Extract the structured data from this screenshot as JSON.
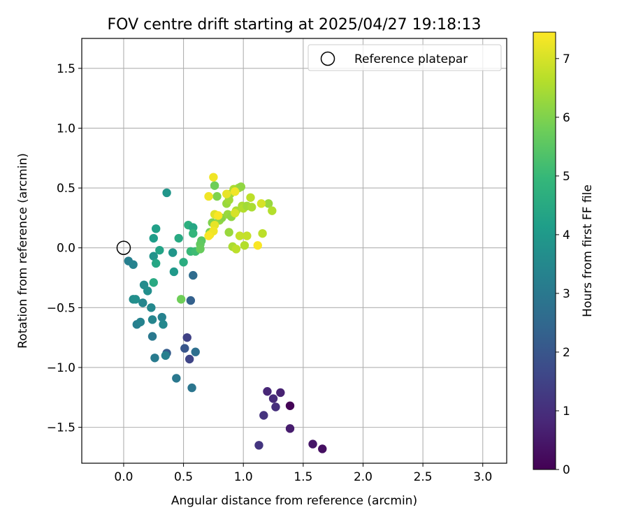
{
  "chart_data": {
    "type": "scatter",
    "title": "FOV centre drift starting at 2025/04/27 19:18:13",
    "xlabel": "Angular distance from reference (arcmin)",
    "ylabel": "Rotation from reference (arcmin)",
    "xlim": [
      -0.35,
      3.2
    ],
    "ylim": [
      -1.8,
      1.75
    ],
    "xticks": [
      0.0,
      0.5,
      1.0,
      1.5,
      2.0,
      2.5,
      3.0
    ],
    "xtick_labels": [
      "0.0",
      "0.5",
      "1.0",
      "1.5",
      "2.0",
      "2.5",
      "3.0"
    ],
    "yticks": [
      -1.5,
      -1.0,
      -0.5,
      0.0,
      0.5,
      1.0,
      1.5
    ],
    "ytick_labels": [
      "−1.5",
      "−1.0",
      "−0.5",
      "0.0",
      "0.5",
      "1.0",
      "1.5"
    ],
    "grid": true,
    "legend": {
      "placement": "top-right",
      "entries": [
        "Reference platepar"
      ]
    },
    "reference_point": {
      "x": 0.0,
      "y": 0.0
    },
    "colorbar": {
      "label": "Hours from first FF file",
      "range": [
        0,
        7.45
      ],
      "ticks": [
        0,
        1,
        2,
        3,
        4,
        5,
        6,
        7
      ],
      "tick_labels": [
        "0",
        "1",
        "2",
        "3",
        "4",
        "5",
        "6",
        "7"
      ],
      "colormap": [
        "#440154",
        "#482878",
        "#3e4989",
        "#31688e",
        "#26828e",
        "#1f9e89",
        "#35b779",
        "#6ece58",
        "#b5de2b",
        "#fde725"
      ]
    },
    "points": [
      {
        "x": 1.39,
        "y": -1.32,
        "c": 0.05
      },
      {
        "x": 1.66,
        "y": -1.68,
        "c": 0.3
      },
      {
        "x": 1.58,
        "y": -1.64,
        "c": 0.45
      },
      {
        "x": 1.39,
        "y": -1.51,
        "c": 0.6
      },
      {
        "x": 1.31,
        "y": -1.21,
        "c": 0.7
      },
      {
        "x": 1.2,
        "y": -1.2,
        "c": 0.8
      },
      {
        "x": 1.25,
        "y": -1.26,
        "c": 0.9
      },
      {
        "x": 1.27,
        "y": -1.33,
        "c": 1.0
      },
      {
        "x": 1.17,
        "y": -1.4,
        "c": 1.1
      },
      {
        "x": 1.13,
        "y": -1.65,
        "c": 1.15
      },
      {
        "x": 0.53,
        "y": -0.75,
        "c": 1.45
      },
      {
        "x": 0.55,
        "y": -0.93,
        "c": 1.55
      },
      {
        "x": 0.51,
        "y": -0.84,
        "c": 2.0
      },
      {
        "x": 0.36,
        "y": -0.88,
        "c": 2.2
      },
      {
        "x": 0.56,
        "y": -0.44,
        "c": 2.3
      },
      {
        "x": 0.58,
        "y": -0.23,
        "c": 2.6
      },
      {
        "x": 0.6,
        "y": -0.87,
        "c": 2.7
      },
      {
        "x": 0.57,
        "y": -1.17,
        "c": 2.9
      },
      {
        "x": 0.44,
        "y": -1.09,
        "c": 3.0
      },
      {
        "x": 0.26,
        "y": -0.92,
        "c": 3.1
      },
      {
        "x": 0.35,
        "y": -0.9,
        "c": 3.2
      },
      {
        "x": 0.24,
        "y": -0.74,
        "c": 3.0
      },
      {
        "x": 0.11,
        "y": -0.64,
        "c": 3.2
      },
      {
        "x": 0.14,
        "y": -0.62,
        "c": 3.3
      },
      {
        "x": 0.24,
        "y": -0.6,
        "c": 3.4
      },
      {
        "x": 0.32,
        "y": -0.58,
        "c": 3.3
      },
      {
        "x": 0.33,
        "y": -0.64,
        "c": 3.5
      },
      {
        "x": 0.16,
        "y": -0.46,
        "c": 3.4
      },
      {
        "x": 0.23,
        "y": -0.5,
        "c": 3.5
      },
      {
        "x": 0.08,
        "y": -0.43,
        "c": 3.6
      },
      {
        "x": 0.1,
        "y": -0.43,
        "c": 3.7
      },
      {
        "x": 0.04,
        "y": -0.11,
        "c": 3.2
      },
      {
        "x": 0.08,
        "y": -0.14,
        "c": 3.3
      },
      {
        "x": 0.17,
        "y": -0.31,
        "c": 3.6
      },
      {
        "x": 0.2,
        "y": -0.36,
        "c": 3.7
      },
      {
        "x": 0.25,
        "y": -0.07,
        "c": 3.8
      },
      {
        "x": 0.41,
        "y": -0.04,
        "c": 3.9
      },
      {
        "x": 0.42,
        "y": -0.2,
        "c": 4.0
      },
      {
        "x": 0.25,
        "y": 0.08,
        "c": 4.1
      },
      {
        "x": 0.27,
        "y": 0.16,
        "c": 4.2
      },
      {
        "x": 0.36,
        "y": 0.46,
        "c": 3.9
      },
      {
        "x": 0.3,
        "y": -0.02,
        "c": 4.3
      },
      {
        "x": 0.27,
        "y": -0.13,
        "c": 4.4
      },
      {
        "x": 0.25,
        "y": -0.29,
        "c": 4.5
      },
      {
        "x": 0.46,
        "y": 0.08,
        "c": 4.5
      },
      {
        "x": 0.5,
        "y": -0.12,
        "c": 4.6
      },
      {
        "x": 0.54,
        "y": 0.19,
        "c": 4.7
      },
      {
        "x": 0.58,
        "y": 0.17,
        "c": 4.4
      },
      {
        "x": 0.58,
        "y": 0.12,
        "c": 4.9
      },
      {
        "x": 0.56,
        "y": -0.03,
        "c": 5.0
      },
      {
        "x": 0.6,
        "y": -0.03,
        "c": 5.1
      },
      {
        "x": 0.48,
        "y": -0.43,
        "c": 5.8
      },
      {
        "x": 0.65,
        "y": 0.06,
        "c": 5.5
      },
      {
        "x": 0.64,
        "y": 0.03,
        "c": 5.6
      },
      {
        "x": 0.64,
        "y": -0.01,
        "c": 5.7
      },
      {
        "x": 0.72,
        "y": 0.13,
        "c": 5.9
      },
      {
        "x": 0.74,
        "y": 0.21,
        "c": 6.0
      },
      {
        "x": 0.76,
        "y": 0.52,
        "c": 5.8
      },
      {
        "x": 0.78,
        "y": 0.43,
        "c": 6.0
      },
      {
        "x": 0.8,
        "y": 0.23,
        "c": 6.2
      },
      {
        "x": 0.82,
        "y": 0.25,
        "c": 6.1
      },
      {
        "x": 0.87,
        "y": 0.28,
        "c": 6.3
      },
      {
        "x": 0.86,
        "y": 0.37,
        "c": 6.3
      },
      {
        "x": 0.88,
        "y": 0.4,
        "c": 6.4
      },
      {
        "x": 0.89,
        "y": 0.45,
        "c": 6.4
      },
      {
        "x": 0.9,
        "y": 0.26,
        "c": 6.2
      },
      {
        "x": 0.92,
        "y": 0.49,
        "c": 6.5
      },
      {
        "x": 0.94,
        "y": 0.31,
        "c": 6.5
      },
      {
        "x": 0.96,
        "y": 0.5,
        "c": 6.4
      },
      {
        "x": 0.98,
        "y": 0.51,
        "c": 6.2
      },
      {
        "x": 0.99,
        "y": 0.35,
        "c": 6.5
      },
      {
        "x": 1.0,
        "y": 0.33,
        "c": 6.6
      },
      {
        "x": 1.03,
        "y": 0.35,
        "c": 6.4
      },
      {
        "x": 1.06,
        "y": 0.42,
        "c": 6.7
      },
      {
        "x": 1.07,
        "y": 0.34,
        "c": 6.5
      },
      {
        "x": 1.21,
        "y": 0.37,
        "c": 6.3
      },
      {
        "x": 1.24,
        "y": 0.31,
        "c": 6.6
      },
      {
        "x": 1.16,
        "y": 0.12,
        "c": 6.7
      },
      {
        "x": 0.88,
        "y": 0.13,
        "c": 6.3
      },
      {
        "x": 0.91,
        "y": 0.01,
        "c": 6.5
      },
      {
        "x": 0.94,
        "y": -0.01,
        "c": 6.7
      },
      {
        "x": 0.97,
        "y": 0.1,
        "c": 6.8
      },
      {
        "x": 1.01,
        "y": 0.02,
        "c": 6.6
      },
      {
        "x": 1.03,
        "y": 0.1,
        "c": 6.8
      },
      {
        "x": 0.75,
        "y": 0.59,
        "c": 7.3
      },
      {
        "x": 0.71,
        "y": 0.43,
        "c": 7.3
      },
      {
        "x": 0.86,
        "y": 0.45,
        "c": 7.2
      },
      {
        "x": 0.93,
        "y": 0.47,
        "c": 7.3
      },
      {
        "x": 0.76,
        "y": 0.28,
        "c": 7.1
      },
      {
        "x": 0.79,
        "y": 0.27,
        "c": 7.4
      },
      {
        "x": 0.76,
        "y": 0.19,
        "c": 7.2
      },
      {
        "x": 0.75,
        "y": 0.14,
        "c": 7.3
      },
      {
        "x": 0.72,
        "y": 0.11,
        "c": 7.3
      },
      {
        "x": 0.71,
        "y": 0.1,
        "c": 7.4
      },
      {
        "x": 0.93,
        "y": 0.29,
        "c": 7.0
      },
      {
        "x": 1.15,
        "y": 0.37,
        "c": 7.0
      },
      {
        "x": 1.12,
        "y": 0.02,
        "c": 7.4
      }
    ]
  }
}
